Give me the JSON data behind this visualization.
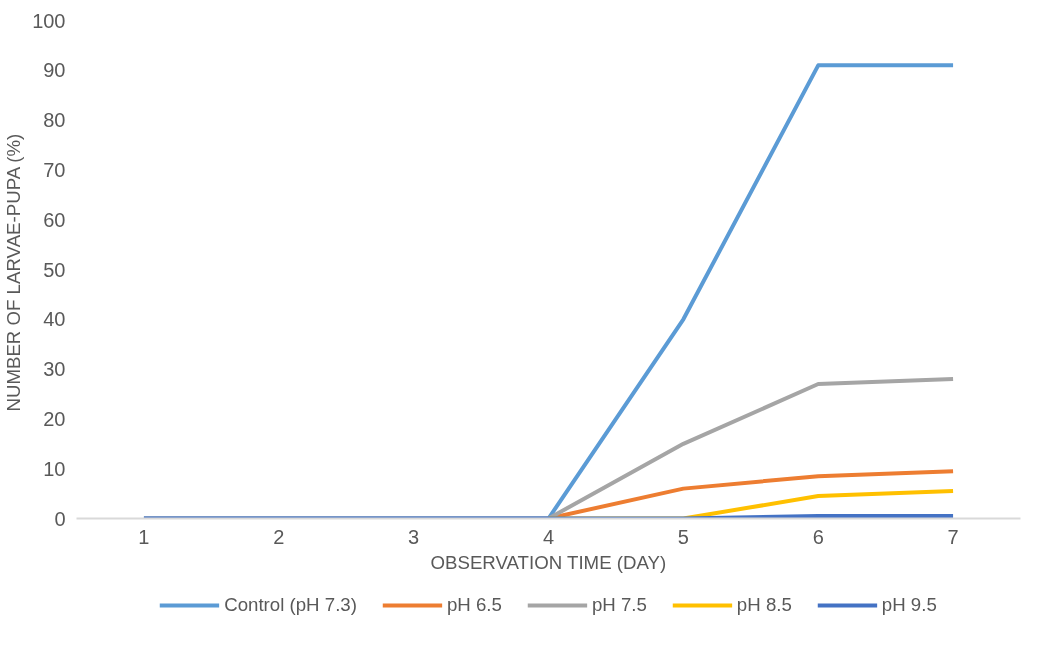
{
  "chart_data": {
    "type": "line",
    "xlabel": "OBSERVATION TIME (DAY)",
    "ylabel": "NUMBER OF LARVAE-PUPA  (%)",
    "categories": [
      "1",
      "2",
      "3",
      "4",
      "5",
      "6",
      "7"
    ],
    "ylim": [
      0,
      100
    ],
    "yticks": [
      0,
      10,
      20,
      30,
      40,
      50,
      60,
      70,
      80,
      90,
      100
    ],
    "grid": false,
    "legend": "bottom",
    "marker": "none",
    "line_style": "solid",
    "series": [
      {
        "name": "Control (pH 7.3)",
        "color": "#5b9bd5",
        "values": [
          0,
          0,
          0,
          0,
          40,
          91,
          91
        ]
      },
      {
        "name": "pH 6.5",
        "color": "#ed7d31",
        "values": [
          null,
          null,
          null,
          0,
          6,
          8.5,
          9.5
        ]
      },
      {
        "name": "pH 7.5",
        "color": "#a5a5a5",
        "values": [
          0,
          0,
          0,
          0,
          15,
          27,
          28
        ]
      },
      {
        "name": "pH 8.5",
        "color": "#ffc000",
        "values": [
          null,
          null,
          null,
          0,
          0,
          4.5,
          5.5
        ]
      },
      {
        "name": "pH 9.5",
        "color": "#4472c4",
        "values": [
          0,
          0,
          0,
          0,
          0,
          0.5,
          0.5
        ]
      }
    ]
  }
}
